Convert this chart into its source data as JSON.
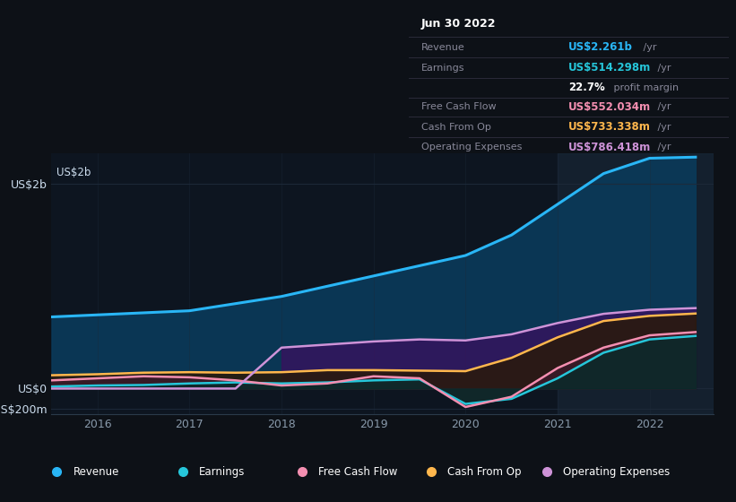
{
  "bg_color": "#0d1117",
  "chart_bg": "#0d1520",
  "x_years": [
    2015.5,
    2016.0,
    2016.5,
    2017.0,
    2017.5,
    2018.0,
    2018.5,
    2019.0,
    2019.5,
    2020.0,
    2020.5,
    2021.0,
    2021.5,
    2022.0,
    2022.5
  ],
  "revenue": [
    700,
    720,
    740,
    760,
    830,
    900,
    1000,
    1100,
    1200,
    1300,
    1500,
    1800,
    2100,
    2250,
    2261
  ],
  "earnings": [
    20,
    30,
    35,
    50,
    60,
    50,
    60,
    80,
    90,
    -150,
    -100,
    100,
    350,
    480,
    514
  ],
  "free_cash_flow": [
    80,
    100,
    120,
    110,
    80,
    30,
    50,
    120,
    100,
    -180,
    -80,
    200,
    400,
    520,
    552
  ],
  "cash_from_op": [
    130,
    140,
    155,
    160,
    155,
    160,
    180,
    180,
    175,
    170,
    300,
    500,
    660,
    710,
    733
  ],
  "operating_expenses": [
    0,
    0,
    0,
    0,
    0,
    400,
    430,
    460,
    480,
    470,
    530,
    640,
    730,
    770,
    786
  ],
  "ylim_min": -250,
  "ylim_max": 2300,
  "xmin": 2015.5,
  "xmax": 2022.7,
  "highlight_x_start": 2021.0,
  "highlight_x_end": 2022.7,
  "revenue_color": "#29b6f6",
  "revenue_fill": "#0a3a5a",
  "earnings_color": "#26c6da",
  "earnings_fill": "#0a2a2a",
  "fcf_color": "#f48fb1",
  "fcf_fill": "#3a1a2a",
  "cashop_color": "#ffb74d",
  "cashop_fill": "#2a1a0a",
  "opex_color": "#ce93d8",
  "opex_fill": "#3a1060",
  "grid_color": "#1e2a3a",
  "axis_label_color": "#8899aa",
  "y_label_color": "#ccddee",
  "tooltip_bg": "#0a0a0f",
  "tooltip_border": "#2a2a3a",
  "tooltip_header": "Jun 30 2022",
  "tooltip_gray": "#888899",
  "legend_bg": "#1a1a28",
  "legend_border": "#2a2a3a",
  "legend_items": [
    {
      "label": "Revenue",
      "color": "#29b6f6"
    },
    {
      "label": "Earnings",
      "color": "#26c6da"
    },
    {
      "label": "Free Cash Flow",
      "color": "#f48fb1"
    },
    {
      "label": "Cash From Op",
      "color": "#ffb74d"
    },
    {
      "label": "Operating Expenses",
      "color": "#ce93d8"
    }
  ],
  "yticks_vals": [
    -200,
    0,
    2000
  ],
  "yticks_labels": [
    "-US$200m",
    "US$0",
    "US$2b"
  ],
  "xticks": [
    2016,
    2017,
    2018,
    2019,
    2020,
    2021,
    2022
  ]
}
